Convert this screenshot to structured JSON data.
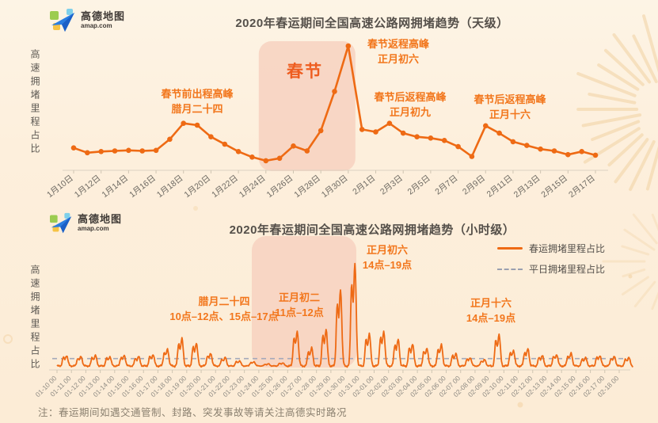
{
  "logo": {
    "name": "高德地图",
    "domain": "amap.com"
  },
  "colors": {
    "background": "#fdefdc",
    "line_orange": "#ee6a14",
    "band_pink": "#f6d0be",
    "annotation_orange": "#f2761c",
    "title_gray": "#55504a",
    "axis_text_gray": "#6e6a63",
    "hourly_axis_text_gray": "#8f8b84",
    "weekday_dash_gray": "#a5a9ba",
    "decor_firework": "#f2d2a2"
  },
  "footer": {
    "note": "注：春运期间如遇交通管制、封路、突发事故等请关注高德实时路况"
  },
  "chart_data": [
    {
      "id": "daily",
      "type": "line",
      "title": "2020年春运期间全国高速公路网拥堵趋势（天级）",
      "ylabel": "高速拥堵里程占比",
      "x_tick_labels": [
        "1月10日",
        "1月12日",
        "1月14日",
        "1月16日",
        "1月18日",
        "1月20日",
        "1月22日",
        "1月24日",
        "1月26日",
        "1月28日",
        "1月30日",
        "2月1日",
        "2月3日",
        "2月5日",
        "2月7日",
        "2月9日",
        "2月11日",
        "2月13日",
        "2月15日",
        "2月17日"
      ],
      "dates": [
        "01-10",
        "01-11",
        "01-12",
        "01-13",
        "01-14",
        "01-15",
        "01-16",
        "01-17",
        "01-18",
        "01-19",
        "01-20",
        "01-21",
        "01-22",
        "01-23",
        "01-24",
        "01-25",
        "01-26",
        "01-27",
        "01-28",
        "01-29",
        "01-30",
        "01-31",
        "02-01",
        "02-02",
        "02-03",
        "02-04",
        "02-05",
        "02-06",
        "02-07",
        "02-08",
        "02-09",
        "02-10",
        "02-11",
        "02-12",
        "02-13",
        "02-14",
        "02-15",
        "02-16",
        "02-17"
      ],
      "values": [
        1.7,
        1.3,
        1.4,
        1.45,
        1.5,
        1.45,
        1.5,
        2.4,
        3.7,
        3.55,
        2.6,
        2.0,
        1.4,
        0.95,
        0.65,
        0.85,
        1.85,
        1.45,
        3.1,
        6.3,
        10.0,
        3.2,
        3.0,
        3.7,
        2.9,
        2.6,
        2.5,
        2.3,
        1.8,
        1.0,
        3.5,
        2.9,
        2.2,
        1.9,
        1.6,
        1.45,
        1.15,
        1.4,
        1.1
      ],
      "ylim": [
        0,
        10.8
      ],
      "value_note": "relative congestion-mileage share index, 10 = Jan 30 peak (no numeric axis shown)",
      "grid": false,
      "spring_festival_band": {
        "label": "春节",
        "start": "01-24",
        "end": "01-30"
      },
      "annotations": [
        {
          "line1": "春节前出程高峰",
          "line2": "腊月二十四",
          "points_to": "01-18"
        },
        {
          "line1": "春节返程高峰",
          "line2": "正月初六",
          "points_to": "01-30"
        },
        {
          "line1": "春节后返程高峰",
          "line2": "正月初九",
          "points_to": "02-02"
        },
        {
          "line1": "春节后返程高峰",
          "line2": "正月十六",
          "points_to": "02-09"
        }
      ]
    },
    {
      "id": "hourly",
      "type": "line",
      "title": "2020年春运期间全国高速公路网拥堵趋势（小时级）",
      "ylabel": "高速拥堵里程占比",
      "legend": [
        {
          "label": "春运拥堵里程占比",
          "style": "solid",
          "color": "#ee6a14"
        },
        {
          "label": "平日拥堵里程占比",
          "style": "dashed",
          "color": "#a5a9ba"
        }
      ],
      "x_tick_labels": [
        "01-10 00",
        "01-11 00",
        "01-12 00",
        "01-13 00",
        "01-14 00",
        "01-15 00",
        "01-16 00",
        "01-17 00",
        "01-18 00",
        "01-19 00",
        "01-20 00",
        "01-21 00",
        "01-22 00",
        "01-23 00",
        "01-24 00",
        "01-25 00",
        "01-26 00",
        "01-27 00",
        "01-28 00",
        "01-29 00",
        "01-30 00",
        "01-31 00",
        "02-01 00",
        "02-02 00",
        "02-03 00",
        "02-04 00",
        "02-05 00",
        "02-06 00",
        "02-07 00",
        "02-08 00",
        "02-09 00",
        "02-10 00",
        "02-11 00",
        "02-12 00",
        "02-13 00",
        "02-14 00",
        "02-15 00",
        "02-16 00",
        "02-17 00",
        "02-18 00"
      ],
      "daily_peak_values": [
        1.3,
        1.2,
        1.3,
        1.2,
        1.3,
        1.2,
        1.4,
        1.9,
        2.9,
        2.5,
        1.5,
        1.1,
        0.8,
        0.7,
        0.5,
        0.6,
        3.6,
        2.0,
        3.8,
        7.6,
        10.0,
        3.4,
        3.6,
        2.8,
        2.4,
        2.0,
        2.3,
        1.5,
        1.1,
        0.9,
        3.3,
        1.8,
        1.9,
        1.3,
        1.4,
        1.5,
        1.1,
        1.3,
        1.2,
        1.1
      ],
      "weekday_baseline": 1.0,
      "night_trough": 0.3,
      "ylim": [
        0,
        10.8
      ],
      "value_note": "hourly series oscillates daily between night trough and the day-peak value listed per date; dashed weekday reference is constant",
      "grid": false,
      "spring_festival_band": {
        "start": "01-24",
        "end": "01-31"
      },
      "annotations": [
        {
          "line1": "腊月二十四",
          "line2": "10点–12点、15点–17点",
          "points_to": "01-18"
        },
        {
          "line1": "正月初二",
          "line2": "11点–12点",
          "points_to": "01-26"
        },
        {
          "line1": "正月初六",
          "line2": "14点–19点",
          "points_to": "01-30"
        },
        {
          "line1": "正月十六",
          "line2": "14点–19点",
          "points_to": "02-09"
        }
      ]
    }
  ]
}
